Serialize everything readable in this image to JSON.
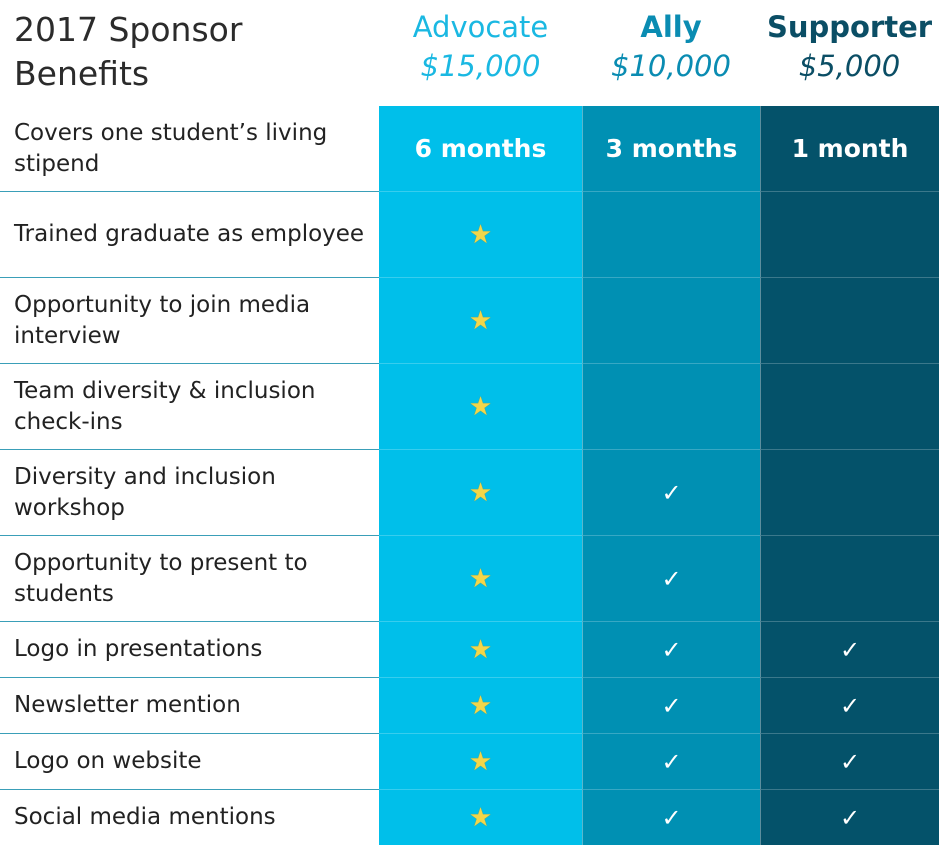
{
  "title": "2017 Sponsor\nBenefits",
  "tiers": [
    {
      "name": "Advocate",
      "price": "$15,000",
      "color": "#1ab8e2",
      "fill": "#00bfea"
    },
    {
      "name": "Ally",
      "price": "$10,000",
      "color": "#0a8cb2",
      "fill": "#0090b3"
    },
    {
      "name": "Supporter",
      "price": "$5,000",
      "color": "#0b4e65",
      "fill": "#04526a"
    }
  ],
  "stipend": {
    "label": "Covers one student’s living stipend",
    "advocate": "6 months",
    "ally": "3 months",
    "supporter": "1 month"
  },
  "benefits": [
    {
      "label": "Trained graduate as employee",
      "advocate": "star",
      "ally": "",
      "supporter": ""
    },
    {
      "label": "Opportunity to join media interview",
      "advocate": "star",
      "ally": "",
      "supporter": ""
    },
    {
      "label": "Team diversity & inclusion check-ins",
      "advocate": "star",
      "ally": "",
      "supporter": ""
    },
    {
      "label": "Diversity and inclusion workshop",
      "advocate": "star",
      "ally": "check",
      "supporter": ""
    },
    {
      "label": "Opportunity to present to students",
      "advocate": "star",
      "ally": "check",
      "supporter": ""
    },
    {
      "label": "Logo in presentations",
      "advocate": "star",
      "ally": "check",
      "supporter": "check"
    },
    {
      "label": "Newsletter mention",
      "advocate": "star",
      "ally": "check",
      "supporter": "check"
    },
    {
      "label": "Logo on website",
      "advocate": "star",
      "ally": "check",
      "supporter": "check"
    },
    {
      "label": "Social media mentions",
      "advocate": "star",
      "ally": "check",
      "supporter": "check"
    }
  ],
  "icons": {
    "star": "star-icon",
    "check": "check-icon"
  }
}
